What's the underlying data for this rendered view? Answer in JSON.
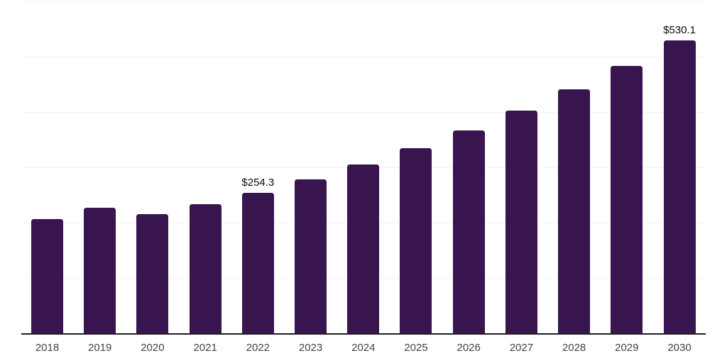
{
  "chart_data": {
    "type": "bar",
    "title": "",
    "xlabel": "",
    "ylabel": "",
    "categories": [
      "2018",
      "2019",
      "2020",
      "2021",
      "2022",
      "2023",
      "2024",
      "2025",
      "2026",
      "2027",
      "2028",
      "2029",
      "2030"
    ],
    "values": [
      206.4,
      226.9,
      215.4,
      233.4,
      254.3,
      278.4,
      305.3,
      334.7,
      367.0,
      402.4,
      441.2,
      483.8,
      530.1
    ],
    "data_labels": [
      "",
      "",
      "",
      "",
      "$254.3",
      "",
      "",
      "",
      "",
      "",
      "",
      "",
      "$530.1"
    ],
    "ylim": [
      0,
      600
    ],
    "gridline_values": [
      100,
      200,
      300,
      400,
      500,
      600
    ],
    "grid": "horizontal",
    "legend": "none",
    "y_tick_labels": "none"
  },
  "style": {
    "background": "#ffffff",
    "bar_color": "#38154F",
    "axis_color": "#1f1f1f",
    "gridline_color": "#f2f2f2",
    "data_label_color": "#0a0a0a",
    "tick_label_color": "#444444"
  }
}
